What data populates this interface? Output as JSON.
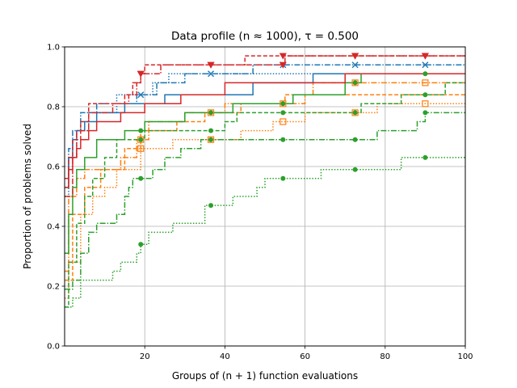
{
  "chart_data": {
    "type": "line",
    "title": "Data profile (n ≈ 1000), τ = 0.500",
    "xlabel": "Groups of (n + 1) function evaluations",
    "ylabel": "Proportion of problems solved",
    "xlim": [
      0,
      100
    ],
    "ylim": [
      0.0,
      1.0
    ],
    "xticks": [
      "20",
      "40",
      "60",
      "80",
      "100"
    ],
    "yticks": [
      "0.0",
      "0.2",
      "0.4",
      "0.6",
      "0.8",
      "1.0"
    ],
    "grid": true,
    "series": [
      {
        "name": "blue solid",
        "color": "#1f77b4",
        "dash": "",
        "marker": "",
        "steps": [
          [
            0,
            0.53
          ],
          [
            1,
            0.63
          ],
          [
            2,
            0.69
          ],
          [
            3,
            0.72
          ],
          [
            5,
            0.75
          ],
          [
            8,
            0.78
          ],
          [
            15,
            0.81
          ],
          [
            25,
            0.84
          ],
          [
            47,
            0.88
          ],
          [
            62,
            0.91
          ]
        ]
      },
      {
        "name": "blue dash-dot",
        "color": "#1f77b4",
        "dash": "7,2,1.5,2",
        "marker": "x",
        "steps": [
          [
            0,
            0.56
          ],
          [
            1,
            0.66
          ],
          [
            2,
            0.72
          ],
          [
            4,
            0.78
          ],
          [
            8,
            0.81
          ],
          [
            18,
            0.84
          ],
          [
            23,
            0.88
          ],
          [
            30,
            0.91
          ],
          [
            47,
            0.94
          ]
        ]
      },
      {
        "name": "blue dotted",
        "color": "#1f77b4",
        "dash": "1.5,2",
        "marker": "",
        "steps": [
          [
            0,
            0.5
          ],
          [
            1,
            0.63
          ],
          [
            3,
            0.72
          ],
          [
            6,
            0.78
          ],
          [
            13,
            0.84
          ],
          [
            22,
            0.88
          ],
          [
            26,
            0.91
          ]
        ]
      },
      {
        "name": "orange dash-dot",
        "color": "#ff7f0e",
        "dash": "7,2,1.5,2",
        "marker": "square",
        "steps": [
          [
            0,
            0.25
          ],
          [
            1,
            0.5
          ],
          [
            3,
            0.56
          ],
          [
            5,
            0.59
          ],
          [
            14,
            0.63
          ],
          [
            18,
            0.69
          ],
          [
            21,
            0.75
          ],
          [
            30,
            0.78
          ],
          [
            40,
            0.81
          ],
          [
            60,
            0.84
          ],
          [
            62,
            0.88
          ]
        ]
      },
      {
        "name": "orange dotted",
        "color": "#ff7f0e",
        "dash": "1.5,2",
        "marker": "square",
        "steps": [
          [
            0,
            0.16
          ],
          [
            1,
            0.28
          ],
          [
            4,
            0.44
          ],
          [
            7,
            0.5
          ],
          [
            10,
            0.53
          ],
          [
            13,
            0.59
          ],
          [
            19,
            0.66
          ],
          [
            27,
            0.69
          ],
          [
            44,
            0.72
          ],
          [
            52,
            0.75
          ],
          [
            60,
            0.78
          ],
          [
            78,
            0.81
          ]
        ]
      },
      {
        "name": "orange dashed",
        "color": "#ff7f0e",
        "dash": "5,2.5",
        "marker": "",
        "steps": [
          [
            0,
            0.22
          ],
          [
            2,
            0.44
          ],
          [
            5,
            0.53
          ],
          [
            9,
            0.59
          ],
          [
            15,
            0.66
          ],
          [
            19,
            0.72
          ],
          [
            28,
            0.75
          ],
          [
            35,
            0.78
          ],
          [
            44,
            0.81
          ],
          [
            55,
            0.84
          ]
        ]
      },
      {
        "name": "green solid",
        "color": "#2ca02c",
        "dash": "",
        "marker": "circle",
        "steps": [
          [
            0,
            0.31
          ],
          [
            1,
            0.44
          ],
          [
            2,
            0.53
          ],
          [
            3,
            0.59
          ],
          [
            5,
            0.63
          ],
          [
            8,
            0.69
          ],
          [
            15,
            0.72
          ],
          [
            20,
            0.75
          ],
          [
            30,
            0.78
          ],
          [
            42,
            0.81
          ],
          [
            57,
            0.84
          ],
          [
            70,
            0.88
          ],
          [
            74,
            0.91
          ]
        ]
      },
      {
        "name": "green dashed",
        "color": "#2ca02c",
        "dash": "5,2.5",
        "marker": "circle",
        "steps": [
          [
            0,
            0.13
          ],
          [
            1,
            0.28
          ],
          [
            3,
            0.41
          ],
          [
            5,
            0.5
          ],
          [
            7,
            0.56
          ],
          [
            10,
            0.63
          ],
          [
            13,
            0.69
          ],
          [
            20,
            0.72
          ],
          [
            40,
            0.75
          ],
          [
            43,
            0.78
          ],
          [
            74,
            0.81
          ],
          [
            84,
            0.84
          ],
          [
            95,
            0.88
          ]
        ]
      },
      {
        "name": "green dash-dot",
        "color": "#2ca02c",
        "dash": "7,2,1.5,2",
        "marker": "circle",
        "steps": [
          [
            0,
            0.19
          ],
          [
            2,
            0.22
          ],
          [
            4,
            0.31
          ],
          [
            6,
            0.38
          ],
          [
            8,
            0.41
          ],
          [
            13,
            0.44
          ],
          [
            15,
            0.5
          ],
          [
            16,
            0.53
          ],
          [
            17,
            0.56
          ],
          [
            22,
            0.59
          ],
          [
            25,
            0.63
          ],
          [
            29,
            0.66
          ],
          [
            34,
            0.69
          ],
          [
            78,
            0.72
          ],
          [
            88,
            0.75
          ],
          [
            90,
            0.78
          ]
        ]
      },
      {
        "name": "green dotted",
        "color": "#2ca02c",
        "dash": "1.5,2",
        "marker": "circle",
        "steps": [
          [
            0,
            0.13
          ],
          [
            2,
            0.16
          ],
          [
            4,
            0.22
          ],
          [
            12,
            0.25
          ],
          [
            14,
            0.28
          ],
          [
            18,
            0.31
          ],
          [
            19,
            0.34
          ],
          [
            21,
            0.38
          ],
          [
            27,
            0.41
          ],
          [
            35,
            0.47
          ],
          [
            42,
            0.5
          ],
          [
            48,
            0.53
          ],
          [
            50,
            0.56
          ],
          [
            64,
            0.59
          ],
          [
            84,
            0.63
          ]
        ]
      },
      {
        "name": "red solid",
        "color": "#d62728",
        "dash": "",
        "marker": "",
        "steps": [
          [
            0,
            0.53
          ],
          [
            1,
            0.59
          ],
          [
            2,
            0.63
          ],
          [
            3,
            0.66
          ],
          [
            4,
            0.69
          ],
          [
            6,
            0.72
          ],
          [
            8,
            0.75
          ],
          [
            14,
            0.78
          ],
          [
            20,
            0.81
          ],
          [
            29,
            0.84
          ],
          [
            40,
            0.88
          ],
          [
            70,
            0.91
          ]
        ]
      },
      {
        "name": "red dashed",
        "color": "#d62728",
        "dash": "5,2.5",
        "marker": "triangle",
        "steps": [
          [
            0,
            0.56
          ],
          [
            1,
            0.63
          ],
          [
            2,
            0.69
          ],
          [
            4,
            0.75
          ],
          [
            6,
            0.81
          ],
          [
            15,
            0.84
          ],
          [
            17,
            0.88
          ],
          [
            19,
            0.91
          ],
          [
            20,
            0.94
          ],
          [
            45,
            0.97
          ]
        ]
      },
      {
        "name": "red dash-dot",
        "color": "#d62728",
        "dash": "7,2,1.5,2",
        "marker": "triangle",
        "steps": [
          [
            0,
            0.5
          ],
          [
            2,
            0.63
          ],
          [
            3,
            0.72
          ],
          [
            6,
            0.78
          ],
          [
            12,
            0.81
          ],
          [
            16,
            0.84
          ],
          [
            18,
            0.88
          ],
          [
            19,
            0.91
          ],
          [
            24,
            0.94
          ],
          [
            55,
            0.97
          ]
        ]
      }
    ],
    "marker_x": [
      19,
      36.5,
      54.5,
      72.5,
      90
    ]
  }
}
